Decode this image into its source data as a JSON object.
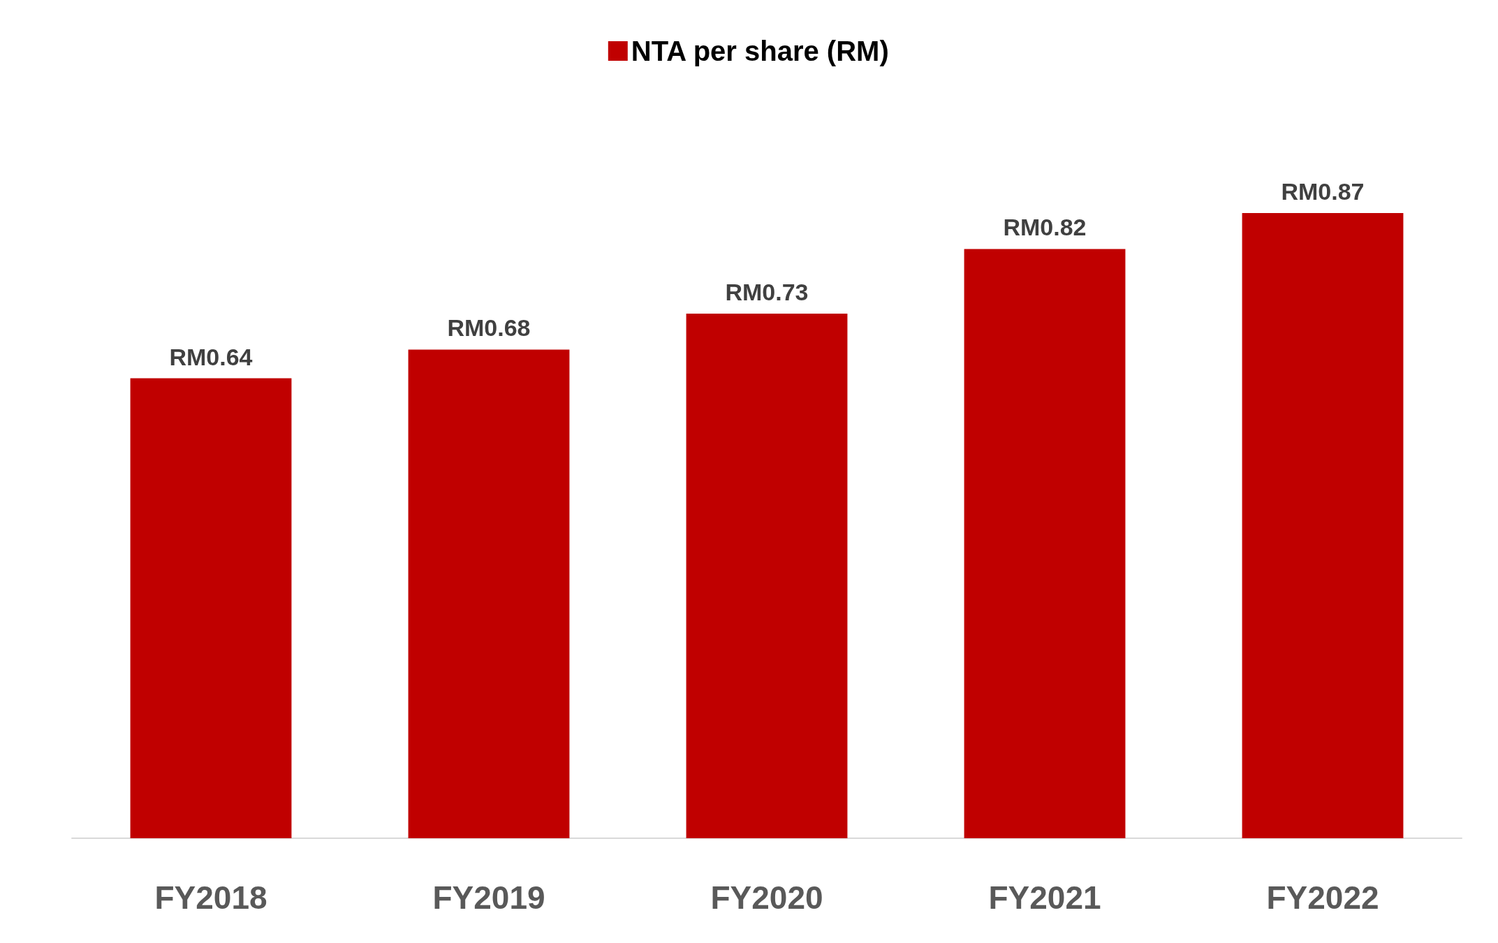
{
  "chart_data": {
    "type": "bar",
    "categories": [
      "FY2018",
      "FY2019",
      "FY2020",
      "FY2021",
      "FY2022"
    ],
    "series": [
      {
        "name": "NTA per share (RM)",
        "color": "#c00000",
        "values": [
          0.64,
          0.68,
          0.73,
          0.82,
          0.87
        ],
        "value_labels": [
          "RM0.64",
          "RM0.68",
          "RM0.73",
          "RM0.82",
          "RM0.87"
        ]
      }
    ],
    "legend": "top"
  }
}
